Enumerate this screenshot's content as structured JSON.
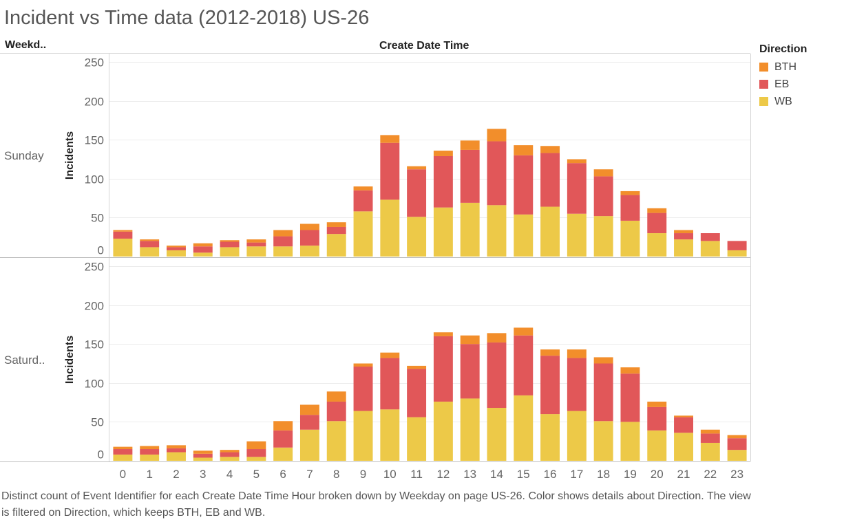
{
  "title": "Incident vs Time data (2012-2018) US-26",
  "row_header": "Weekd..",
  "column_header": "Create Date Time",
  "legend": {
    "title": "Direction",
    "items": [
      {
        "label": "BTH",
        "color": "#f28e2b"
      },
      {
        "label": "EB",
        "color": "#e15759"
      },
      {
        "label": "WB",
        "color": "#edc948"
      }
    ]
  },
  "footer": "Distinct count of Event Identifier for each Create Date Time Hour broken down by Weekday on page US-26.  Color shows details about Direction. The view is filtered on Direction, which keeps BTH, EB and WB.",
  "chart_data": {
    "type": "bar",
    "stacked": true,
    "categories": [
      "0",
      "1",
      "2",
      "3",
      "4",
      "5",
      "6",
      "7",
      "8",
      "9",
      "10",
      "11",
      "12",
      "13",
      "14",
      "15",
      "16",
      "17",
      "18",
      "19",
      "20",
      "21",
      "22",
      "23"
    ],
    "xlabel": "",
    "ylabel": "Incidents",
    "ylim": [
      0,
      250
    ],
    "yticks": [
      0,
      50,
      100,
      150,
      200,
      250
    ],
    "grid": true,
    "legend_position": "right",
    "panels": [
      {
        "row_label": "Sunday",
        "series": [
          {
            "name": "WB",
            "values": [
              23,
              12,
              8,
              5,
              12,
              13,
              13,
              14,
              29,
              58,
              73,
              51,
              63,
              69,
              66,
              54,
              64,
              55,
              52,
              46,
              30,
              22,
              20,
              8
            ]
          },
          {
            "name": "EB",
            "values": [
              9,
              8,
              4,
              8,
              7,
              5,
              13,
              20,
              9,
              27,
              73,
              61,
              66,
              68,
              82,
              76,
              69,
              65,
              51,
              33,
              26,
              8,
              10,
              12
            ]
          },
          {
            "name": "BTH",
            "values": [
              2,
              2,
              2,
              4,
              2,
              4,
              8,
              8,
              6,
              5,
              10,
              4,
              7,
              12,
              16,
              13,
              9,
              5,
              9,
              5,
              6,
              4,
              0,
              0
            ]
          }
        ]
      },
      {
        "row_label": "Saturd..",
        "series": [
          {
            "name": "WB",
            "values": [
              8,
              8,
              11,
              4,
              5,
              5,
              17,
              40,
              51,
              64,
              66,
              56,
              76,
              80,
              68,
              84,
              60,
              64,
              51,
              50,
              39,
              36,
              23,
              14
            ]
          },
          {
            "name": "EB",
            "values": [
              7,
              7,
              5,
              5,
              6,
              10,
              22,
              19,
              25,
              57,
              66,
              62,
              84,
              70,
              84,
              77,
              75,
              68,
              74,
              62,
              30,
              20,
              12,
              15
            ]
          },
          {
            "name": "BTH",
            "values": [
              3,
              4,
              4,
              4,
              3,
              10,
              12,
              13,
              13,
              4,
              7,
              4,
              5,
              11,
              12,
              10,
              8,
              11,
              8,
              8,
              7,
              2,
              5,
              4
            ]
          }
        ]
      }
    ]
  }
}
